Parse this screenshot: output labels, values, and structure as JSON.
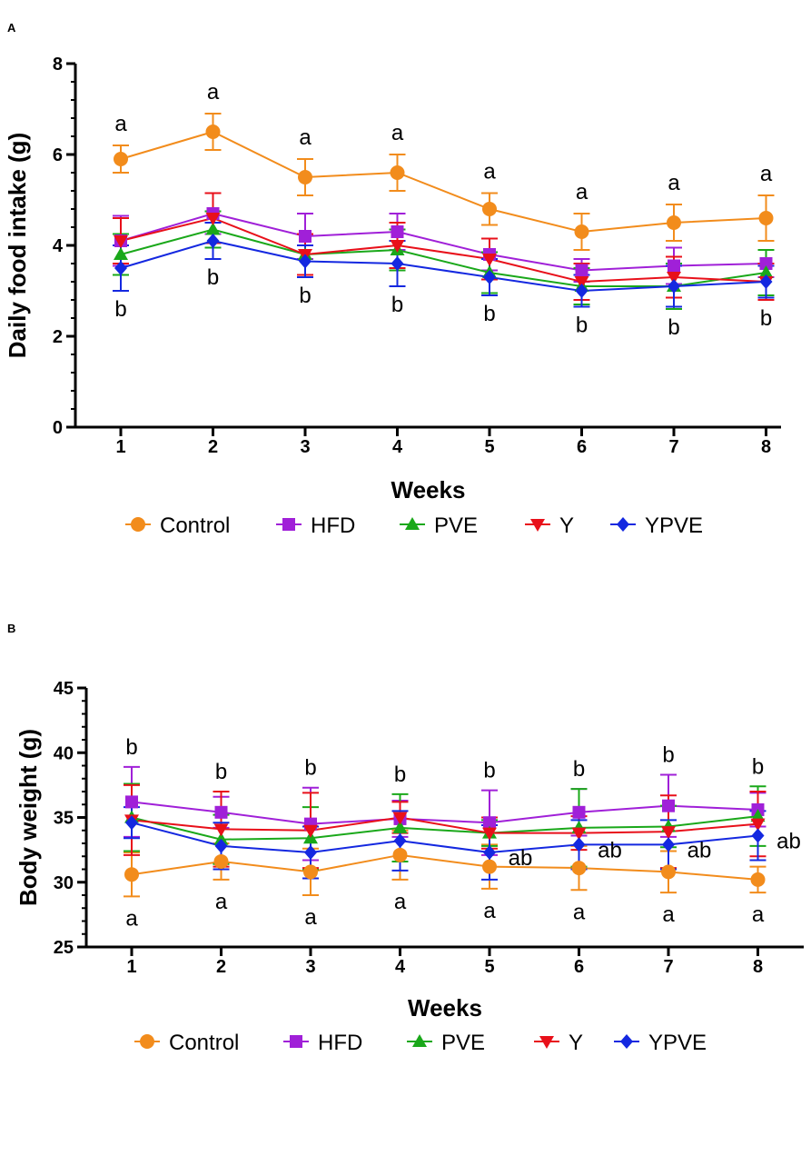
{
  "chart_data": [
    {
      "panel": "A",
      "type": "line",
      "title": "",
      "xlabel": "Weeks",
      "ylabel": "Daily food intake (g)",
      "x": [
        1,
        2,
        3,
        4,
        5,
        6,
        7,
        8
      ],
      "xticks": [
        "1",
        "2",
        "3",
        "4",
        "5",
        "6",
        "7",
        "8"
      ],
      "ylim": [
        0,
        8
      ],
      "yticks": [
        "0",
        "2",
        "4",
        "6",
        "8"
      ],
      "grid": false,
      "legend": "bottom",
      "series": [
        {
          "name": "Control",
          "marker": "circle",
          "color": "#f28c1c",
          "values": [
            5.9,
            6.5,
            5.5,
            5.6,
            4.8,
            4.3,
            4.5,
            4.6
          ],
          "errors": [
            0.3,
            0.4,
            0.4,
            0.4,
            0.35,
            0.4,
            0.4,
            0.5
          ]
        },
        {
          "name": "HFD",
          "marker": "square",
          "color": "#a020d8",
          "values": [
            4.1,
            4.7,
            4.2,
            4.3,
            3.8,
            3.45,
            3.55,
            3.6
          ],
          "errors": [
            0.55,
            0.45,
            0.5,
            0.4,
            0.35,
            0.25,
            0.4,
            0.3
          ]
        },
        {
          "name": "PVE",
          "marker": "triangle-up",
          "color": "#1aa81a",
          "values": [
            3.8,
            4.35,
            3.8,
            3.9,
            3.4,
            3.1,
            3.1,
            3.4
          ],
          "errors": [
            0.45,
            0.4,
            0.45,
            0.45,
            0.45,
            0.4,
            0.5,
            0.5
          ]
        },
        {
          "name": "Y",
          "marker": "triangle-down",
          "color": "#e8101a",
          "values": [
            4.1,
            4.6,
            3.8,
            4.0,
            3.7,
            3.2,
            3.3,
            3.2
          ],
          "errors": [
            0.5,
            0.55,
            0.45,
            0.5,
            0.45,
            0.4,
            0.45,
            0.4
          ]
        },
        {
          "name": "YPVE",
          "marker": "diamond",
          "color": "#1428e0",
          "values": [
            3.5,
            4.1,
            3.65,
            3.6,
            3.3,
            3.0,
            3.1,
            3.2
          ],
          "errors": [
            0.5,
            0.4,
            0.35,
            0.5,
            0.4,
            0.35,
            0.45,
            0.35
          ]
        }
      ],
      "annotations": {
        "above": [
          "a",
          "a",
          "a",
          "a",
          "a",
          "a",
          "a",
          "a"
        ],
        "below": [
          "b",
          "b",
          "b",
          "b",
          "b",
          "b",
          "b",
          "b"
        ]
      }
    },
    {
      "panel": "B",
      "type": "line",
      "title": "",
      "xlabel": "Weeks",
      "ylabel": "Body weight (g)",
      "x": [
        1,
        2,
        3,
        4,
        5,
        6,
        7,
        8
      ],
      "xticks": [
        "1",
        "2",
        "3",
        "4",
        "5",
        "6",
        "7",
        "8"
      ],
      "ylim": [
        25,
        45
      ],
      "yticks": [
        "25",
        "30",
        "35",
        "40",
        "45"
      ],
      "grid": false,
      "legend": "bottom",
      "series": [
        {
          "name": "Control",
          "marker": "circle",
          "color": "#f28c1c",
          "values": [
            30.6,
            31.6,
            30.8,
            32.1,
            31.2,
            31.1,
            30.8,
            30.2
          ],
          "errors": [
            1.7,
            1.4,
            1.8,
            1.9,
            1.7,
            1.7,
            1.6,
            1.0
          ]
        },
        {
          "name": "HFD",
          "marker": "square",
          "color": "#a020d8",
          "values": [
            36.2,
            35.4,
            34.5,
            34.9,
            34.6,
            35.4,
            35.9,
            35.6
          ],
          "errors": [
            2.7,
            1.2,
            2.8,
            1.4,
            2.5,
            1.8,
            2.4,
            1.3
          ]
        },
        {
          "name": "PVE",
          "marker": "triangle-up",
          "color": "#1aa81a",
          "values": [
            35.0,
            33.3,
            33.4,
            34.2,
            33.8,
            34.2,
            34.3,
            35.1
          ],
          "errors": [
            2.6,
            1.9,
            2.4,
            2.6,
            1.0,
            3.0,
            1.6,
            2.3
          ]
        },
        {
          "name": "Y",
          "marker": "triangle-down",
          "color": "#e8101a",
          "values": [
            34.8,
            34.1,
            34.0,
            35.0,
            33.8,
            33.8,
            33.9,
            34.5
          ],
          "errors": [
            2.7,
            2.9,
            2.9,
            1.2,
            1.2,
            1.3,
            2.8,
            2.5
          ]
        },
        {
          "name": "YPVE",
          "marker": "diamond",
          "color": "#1428e0",
          "values": [
            34.6,
            32.8,
            32.3,
            33.2,
            32.3,
            32.9,
            32.9,
            33.6
          ],
          "errors": [
            1.2,
            1.8,
            2.0,
            2.3,
            2.1,
            1.9,
            1.9,
            1.9
          ]
        }
      ],
      "annotations": {
        "above": [
          "b",
          "b",
          "b",
          "b",
          "b",
          "b",
          "b",
          "b"
        ],
        "below": [
          "a",
          "a",
          "a",
          "a",
          "a",
          "a",
          "a",
          "a"
        ],
        "middle": [
          "",
          "",
          "",
          "",
          "ab",
          "ab",
          "ab",
          "ab"
        ]
      }
    }
  ]
}
